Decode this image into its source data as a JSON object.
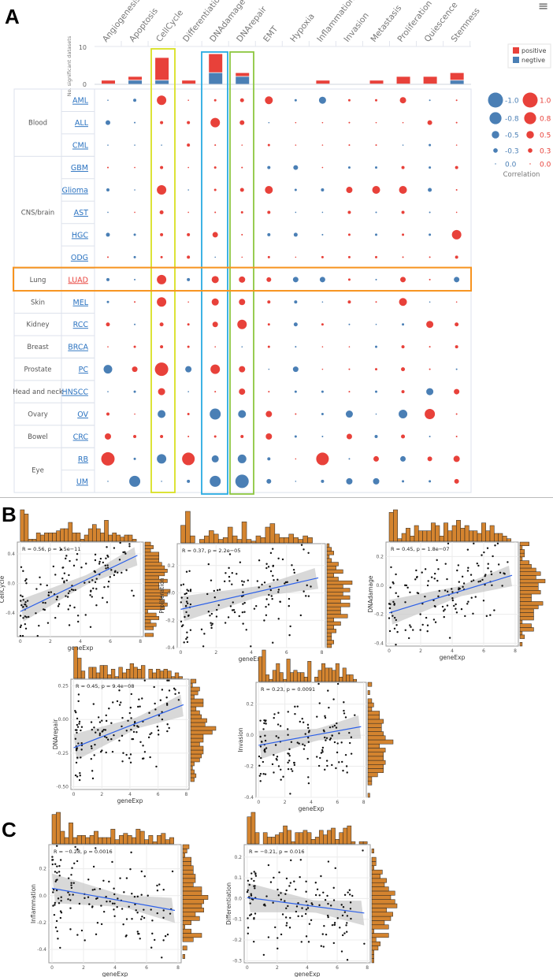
{
  "panel_labels": [
    "A",
    "B",
    "C"
  ],
  "menu_icon": "hamburger-menu-icon",
  "colors": {
    "positive": "#e8413a",
    "negative": "#4a7fb5",
    "cellcycle_box": "#d9e021",
    "dnadamage_box": "#29abe2",
    "dnarepair_box": "#8cc63f",
    "lung_box": "#f7931e",
    "hist_fill": "#d4842f",
    "fit_line": "#2b5fe8"
  },
  "chart_data": [
    {
      "type": "bar",
      "stacked": true,
      "ylabel": "No. significant datasets",
      "ylim": [
        0,
        10
      ],
      "yticks": [
        0,
        10
      ],
      "categories": [
        "Angiogenesis",
        "Apoptosis",
        "CellCycle",
        "Differentiation",
        "DNAdamage",
        "DNArepair",
        "EMT",
        "Hypoxia",
        "Inflammation",
        "Invasion",
        "Metastasis",
        "Proliferation",
        "Quiescence",
        "Stemness"
      ],
      "series": [
        {
          "name": "positive",
          "values": [
            1,
            1,
            6,
            1,
            5,
            1,
            0,
            0,
            1,
            0,
            1,
            2,
            2,
            2
          ]
        },
        {
          "name": "negtive",
          "values": [
            0,
            1,
            1,
            0,
            3,
            2,
            0,
            0,
            0,
            0,
            0,
            0,
            0,
            1
          ]
        }
      ],
      "legend": "top-right"
    },
    {
      "type": "heatmap",
      "marker": "circle-size-and-color",
      "legend_title": "Correlation",
      "legend_values_negative": [
        "-1.0",
        "-0.8",
        "-0.5",
        "-0.3",
        "0.0"
      ],
      "legend_values_positive": [
        "1.0",
        "0.8",
        "0.5",
        "0.3",
        "0.0"
      ],
      "columns": [
        "Angiogenesis",
        "Apoptosis",
        "CellCycle",
        "Differentiation",
        "DNAdamage",
        "DNArepair",
        "EMT",
        "Hypoxia",
        "Inflammation",
        "Invasion",
        "Metastasis",
        "Proliferation",
        "Quiescence",
        "Stemness"
      ],
      "groups": [
        {
          "name": "Blood",
          "datasets": [
            "AML",
            "ALL",
            "CML"
          ]
        },
        {
          "name": "CNS/brain",
          "datasets": [
            "GBM",
            "Glioma",
            "AST",
            "HGC",
            "ODG"
          ]
        },
        {
          "name": "Lung",
          "datasets": [
            "LUAD"
          ]
        },
        {
          "name": "Skin",
          "datasets": [
            "MEL"
          ]
        },
        {
          "name": "Kidney",
          "datasets": [
            "RCC"
          ]
        },
        {
          "name": "Breast",
          "datasets": [
            "BRCA"
          ]
        },
        {
          "name": "Prostate",
          "datasets": [
            "PC"
          ]
        },
        {
          "name": "Head and neck",
          "datasets": [
            "HNSCC"
          ]
        },
        {
          "name": "Ovary",
          "datasets": [
            "OV"
          ]
        },
        {
          "name": "Bowel",
          "datasets": [
            "CRC"
          ]
        },
        {
          "name": "Eye",
          "datasets": [
            "RB",
            "UM"
          ]
        }
      ],
      "highlighted_columns": [
        "CellCycle",
        "DNAdamage",
        "DNArepair"
      ],
      "highlighted_row": "LUAD",
      "values": {
        "AML": [
          -0.05,
          -0.2,
          0.6,
          0.05,
          0.15,
          0.25,
          0.5,
          -0.15,
          -0.45,
          0.15,
          0.15,
          0.4,
          -0.1,
          0.1
        ],
        "ALL": [
          -0.3,
          -0.1,
          0.2,
          0.2,
          0.6,
          0.3,
          -0.05,
          0.05,
          0.05,
          0.1,
          0.05,
          0.05,
          0.3,
          0.1
        ],
        "CML": [
          -0.05,
          -0.05,
          -0.05,
          0.2,
          0.1,
          0.05,
          0.15,
          0.05,
          0.05,
          0.1,
          0.1,
          -0.05,
          -0.15,
          0.05
        ],
        "GBM": [
          0.1,
          0.05,
          0.2,
          0.05,
          0.15,
          0.1,
          -0.2,
          -0.3,
          0.05,
          -0.15,
          -0.15,
          0.2,
          -0.15,
          0.2
        ],
        "Glioma": [
          -0.2,
          -0.05,
          0.6,
          -0.05,
          0.15,
          0.25,
          0.5,
          -0.15,
          -0.2,
          0.4,
          0.5,
          0.5,
          -0.25,
          0.1
        ],
        "AST": [
          -0.05,
          0.05,
          0.25,
          0.05,
          0.1,
          0.15,
          0.2,
          -0.05,
          -0.05,
          0.2,
          -0.1,
          0.2,
          -0.1,
          0.05
        ],
        "HGC": [
          -0.25,
          -0.15,
          0.2,
          0.2,
          0.35,
          0.1,
          -0.2,
          -0.25,
          -0.1,
          0.15,
          -0.15,
          0.15,
          -0.15,
          0.6
        ],
        "ODG": [
          0.1,
          -0.15,
          0.15,
          0.2,
          -0.05,
          0.05,
          0.15,
          0.05,
          0.15,
          0.15,
          0.15,
          0.1,
          0.1,
          0.2
        ],
        "LUAD": [
          -0.2,
          -0.1,
          0.6,
          -0.2,
          0.45,
          0.4,
          0.3,
          -0.35,
          -0.35,
          0.15,
          -0.1,
          0.35,
          0.1,
          -0.35
        ],
        "MEL": [
          -0.15,
          0.1,
          0.6,
          0.05,
          0.45,
          0.4,
          0.2,
          -0.2,
          -0.05,
          0.2,
          0.1,
          0.5,
          -0.05,
          0.05
        ],
        "RCC": [
          0.25,
          -0.1,
          0.25,
          0.15,
          0.35,
          0.6,
          0.15,
          -0.25,
          0.15,
          -0.1,
          -0.05,
          -0.15,
          0.45,
          0.25
        ],
        "BRCA": [
          0.05,
          0.15,
          0.2,
          0.15,
          0.05,
          -0.05,
          0.15,
          -0.1,
          0.05,
          0.05,
          -0.15,
          0.2,
          0.1,
          0.2
        ],
        "PC": [
          -0.55,
          0.35,
          0.85,
          -0.4,
          0.6,
          0.4,
          -0.05,
          -0.35,
          0.05,
          0.1,
          0.15,
          0.25,
          0.1,
          -0.1
        ],
        "HNSCC": [
          -0.05,
          -0.15,
          0.45,
          -0.05,
          0.1,
          0.4,
          0.1,
          -0.15,
          -0.15,
          0.1,
          -0.15,
          0.2,
          -0.45,
          0.35
        ],
        "OV": [
          0.2,
          0.05,
          -0.5,
          0.15,
          -0.7,
          -0.5,
          0.4,
          0.1,
          -0.15,
          -0.45,
          -0.05,
          -0.55,
          0.65,
          0.1
        ],
        "CRC": [
          0.4,
          0.2,
          0.2,
          0.1,
          0.15,
          0.2,
          0.4,
          -0.15,
          -0.1,
          0.35,
          -0.2,
          0.25,
          -0.1,
          0.1
        ],
        "RB": [
          0.85,
          -0.15,
          -0.6,
          0.8,
          -0.45,
          -0.55,
          -0.2,
          0.05,
          0.8,
          -0.1,
          0.35,
          -0.35,
          0.3,
          0.4
        ],
        "UM": [
          -0.05,
          -0.7,
          -0.05,
          -0.2,
          -0.7,
          -0.85,
          -0.3,
          -0.05,
          -0.2,
          -0.4,
          -0.4,
          -0.15,
          -0.15,
          0.3
        ]
      }
    },
    {
      "type": "scatter",
      "panel": "B",
      "xlabel": "geneExp",
      "ylabel": "CellCycle",
      "annotation": "R = 0.56, p = 1.5e−11",
      "xlim": [
        -0.2,
        8.2
      ],
      "ylim": [
        -0.72,
        0.56
      ],
      "xticks": [
        0,
        2,
        4,
        6,
        8
      ],
      "yticks": [
        0.4,
        0.0,
        -0.4
      ],
      "ytick_labels": [
        "0.4",
        "0.0",
        "-0.4"
      ],
      "fit_line": [
        [
          0,
          -0.38
        ],
        [
          7.8,
          0.38
        ]
      ],
      "marginal_histograms": true
    },
    {
      "type": "scatter",
      "panel": "B",
      "xlabel": "geneExp",
      "ylabel": "Proliferation",
      "annotation": "R = 0.37, p = 2.2e−05",
      "xlim": [
        -0.2,
        8.2
      ],
      "ylim": [
        -0.4,
        0.36
      ],
      "xticks": [
        0,
        2,
        4,
        6,
        8
      ],
      "yticks": [
        0.2,
        0.0,
        -0.2,
        -0.4
      ],
      "ytick_labels": [
        "0.2",
        "0.0",
        "-0.2",
        "-0.4"
      ],
      "fit_line": [
        [
          0,
          -0.12
        ],
        [
          7.8,
          0.11
        ]
      ],
      "marginal_histograms": true
    },
    {
      "type": "scatter",
      "panel": "B",
      "xlabel": "geneExp",
      "ylabel": "DNAdamage",
      "annotation": "R = 0.45, p = 1.8e−07",
      "xlim": [
        -0.2,
        8.2
      ],
      "ylim": [
        -0.42,
        0.3
      ],
      "xticks": [
        0,
        2,
        4,
        6,
        8
      ],
      "yticks": [
        0.2,
        0.0,
        -0.2,
        -0.4
      ],
      "ytick_labels": [
        "0.2",
        "0.0",
        "-0.2",
        "-0.4"
      ],
      "fit_line": [
        [
          0,
          -0.19
        ],
        [
          7.8,
          0.07
        ]
      ],
      "marginal_histograms": true
    },
    {
      "type": "scatter",
      "panel": "B",
      "xlabel": "geneExp",
      "ylabel": "DNArepair",
      "annotation": "R = 0.45, p = 9.4e−08",
      "xlim": [
        -0.2,
        8.2
      ],
      "ylim": [
        -0.52,
        0.3
      ],
      "xticks": [
        0,
        2,
        4,
        6,
        8
      ],
      "yticks": [
        0.25,
        0.0,
        -0.25,
        -0.5
      ],
      "ytick_labels": [
        "0.25",
        "0.00",
        "-0.25",
        "-0.50"
      ],
      "fit_line": [
        [
          0,
          -0.21
        ],
        [
          7.8,
          0.11
        ]
      ],
      "marginal_histograms": true
    },
    {
      "type": "scatter",
      "panel": "B",
      "xlabel": "geneExp",
      "ylabel": "Invasion",
      "annotation": "R = 0.23, p = 0.0091",
      "xlim": [
        -0.2,
        8.2
      ],
      "ylim": [
        -0.4,
        0.34
      ],
      "xticks": [
        0,
        2,
        4,
        6,
        8
      ],
      "yticks": [
        0.2,
        0.0,
        -0.2,
        -0.4
      ],
      "ytick_labels": [
        "0.2",
        "0.0",
        "-0.2",
        "-0.4"
      ],
      "fit_line": [
        [
          0,
          -0.065
        ],
        [
          7.8,
          0.055
        ]
      ],
      "marginal_histograms": true
    },
    {
      "type": "scatter",
      "panel": "C",
      "xlabel": "geneExp",
      "ylabel": "Inflammation",
      "annotation": "R = −0.28, p = 0.0016",
      "xlim": [
        -0.2,
        8.2
      ],
      "ylim": [
        -0.5,
        0.38
      ],
      "xticks": [
        0,
        2,
        4,
        6,
        8
      ],
      "yticks": [
        0.2,
        0.0,
        -0.2,
        -0.4
      ],
      "ytick_labels": [
        "0.2",
        "0.0",
        "-0.2",
        "-0.4"
      ],
      "fit_line": [
        [
          0,
          0.055
        ],
        [
          7.8,
          -0.11
        ]
      ],
      "marginal_histograms": true
    },
    {
      "type": "scatter",
      "panel": "C",
      "xlabel": "geneExp",
      "ylabel": "Differentiation",
      "annotation": "R = −0.21, p = 0.016",
      "xlim": [
        -0.2,
        8.2
      ],
      "ylim": [
        -0.31,
        0.26
      ],
      "xticks": [
        0,
        2,
        4,
        6,
        8
      ],
      "yticks": [
        0.2,
        0.1,
        0.0,
        -0.1,
        -0.2,
        -0.3
      ],
      "ytick_labels": [
        "0.2",
        "0.1",
        "0.0",
        "-0.1",
        "-0.2",
        "-0.3"
      ],
      "fit_line": [
        [
          0,
          0.005
        ],
        [
          7.8,
          -0.07
        ]
      ],
      "marginal_histograms": true
    }
  ]
}
